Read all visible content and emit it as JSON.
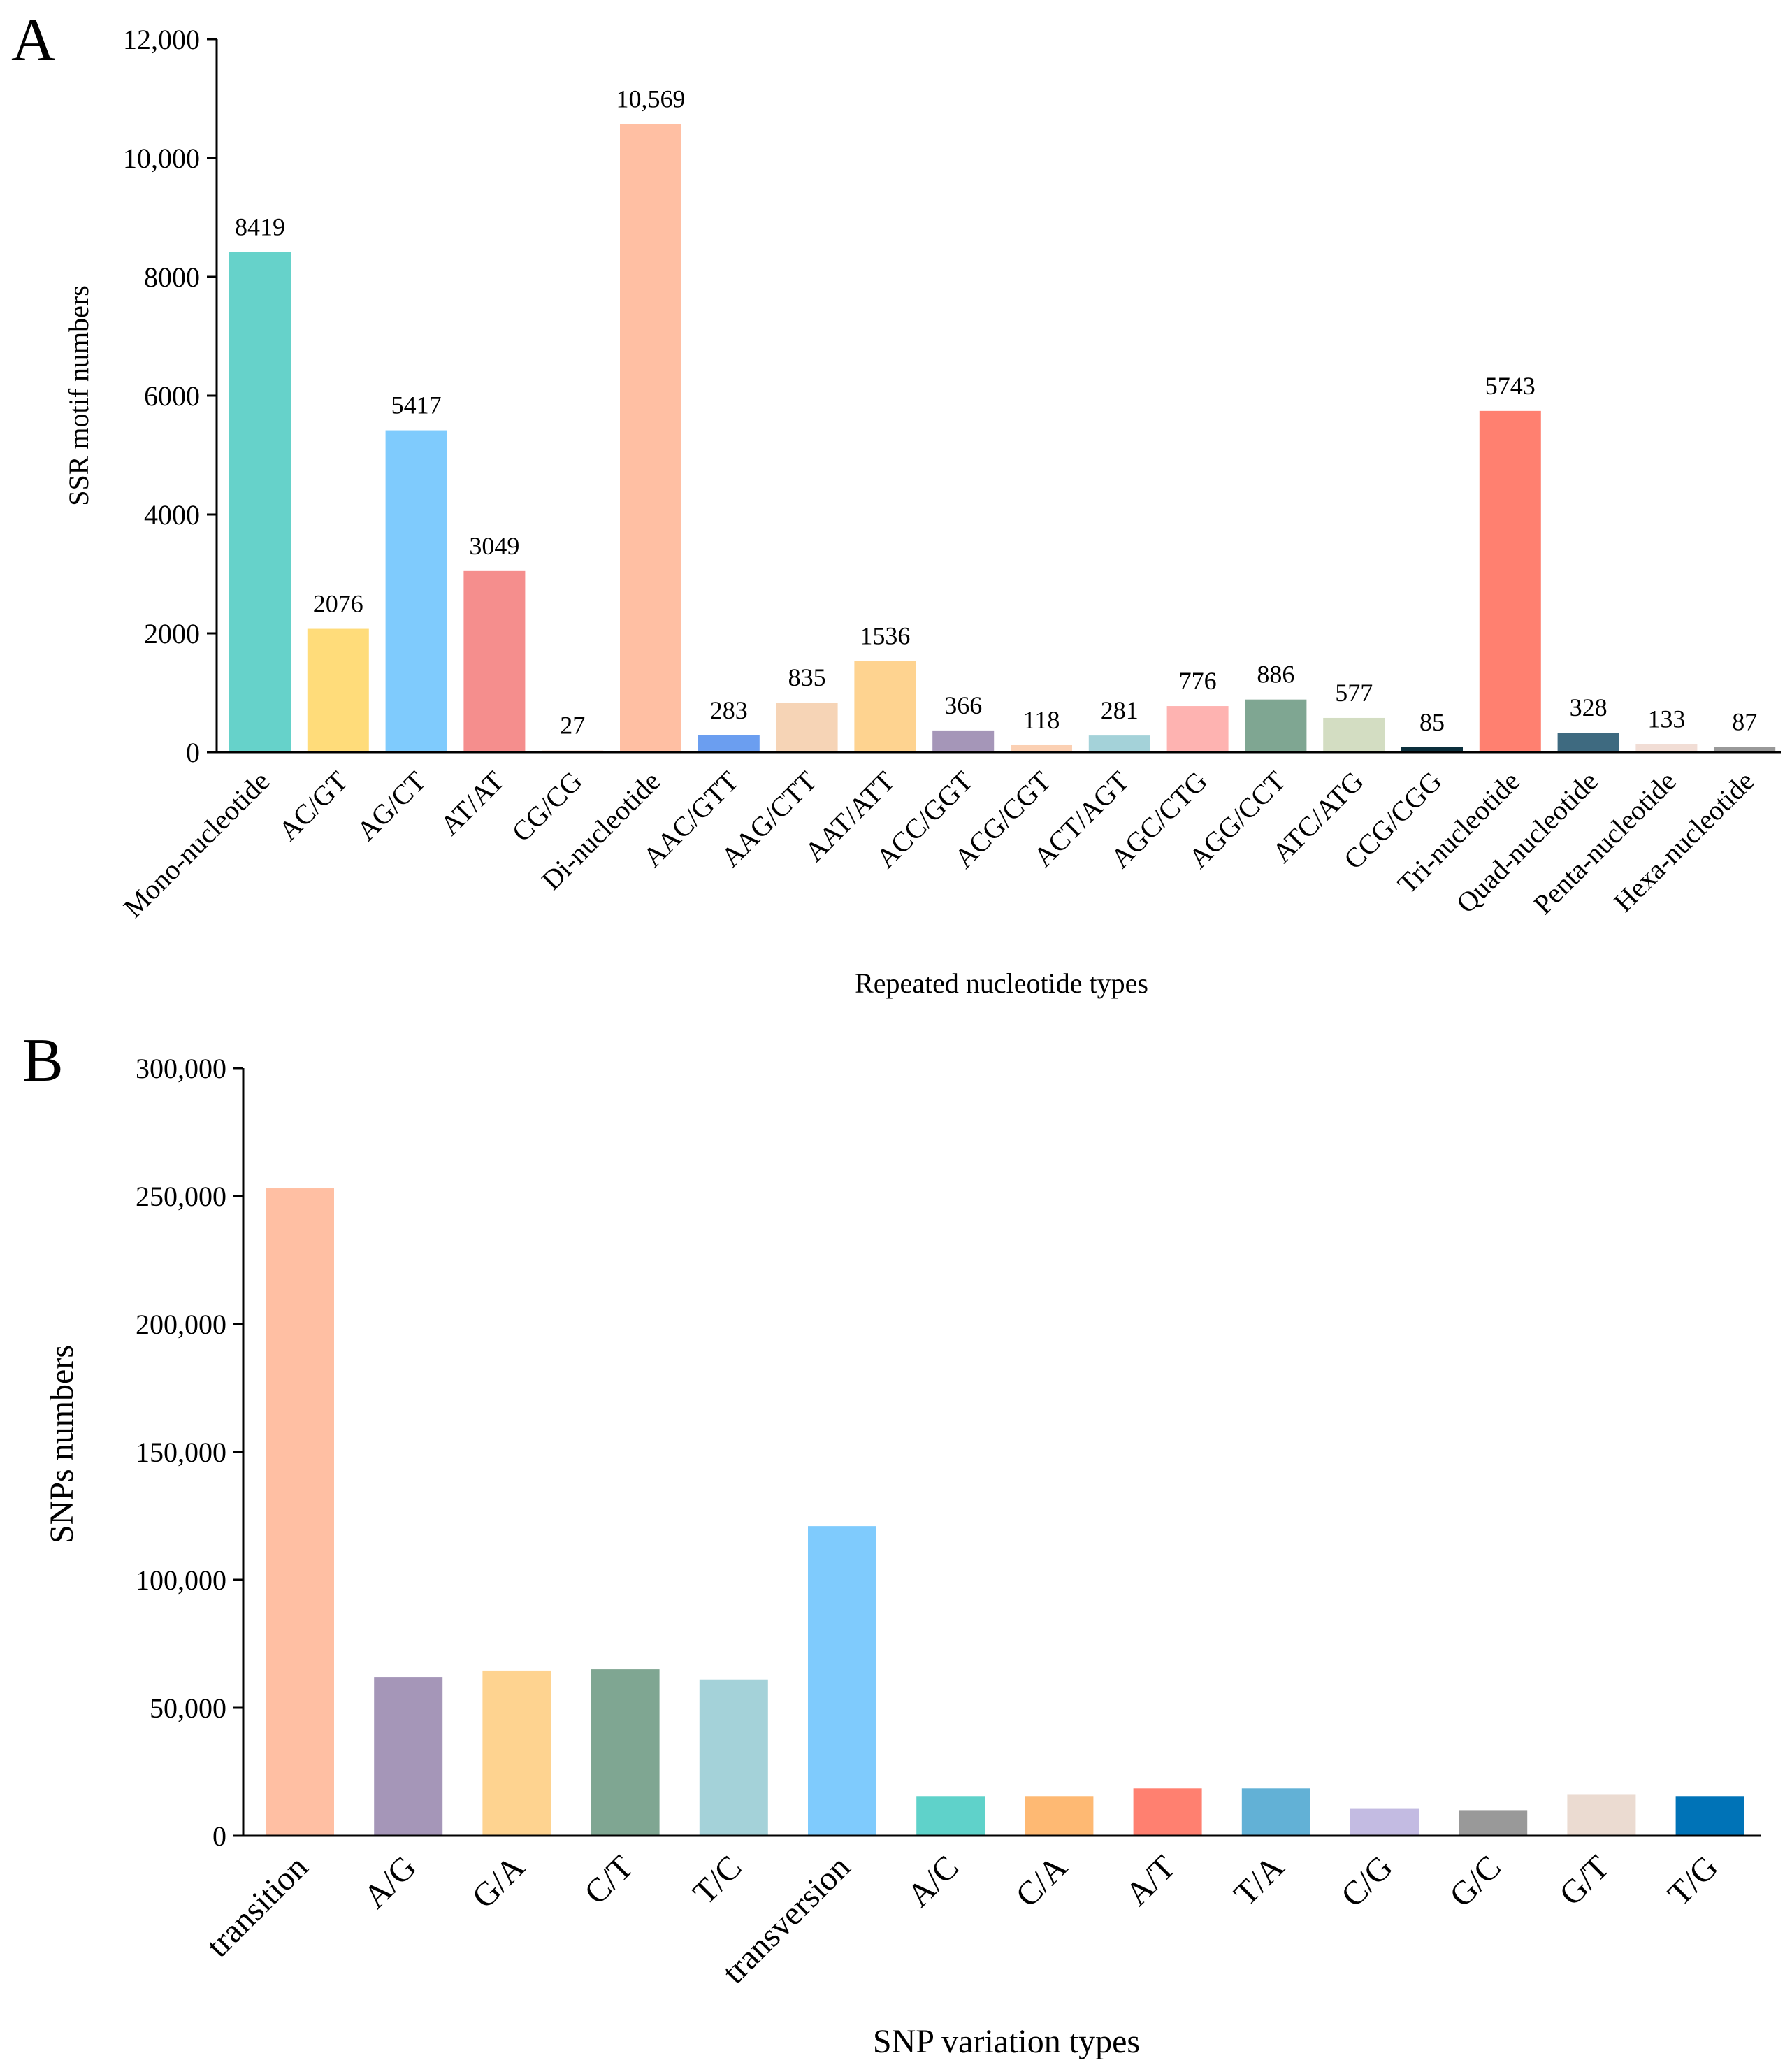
{
  "chart_data": [
    {
      "type": "bar",
      "panel_label": "A",
      "title": "",
      "xlabel": "Repeated nucleotide types",
      "ylabel": "SSR motif numbers",
      "ylim": [
        0,
        12000
      ],
      "yticks": [
        0,
        2000,
        4000,
        6000,
        8000,
        10000,
        12000
      ],
      "ytick_labels": [
        "0",
        "2000",
        "4000",
        "6000",
        "8000",
        "10,000",
        "12,000"
      ],
      "grid": false,
      "categories": [
        "Mono-nucleotide",
        "AC/GT",
        "AG/CT",
        "AT/AT",
        "CG/CG",
        "Di-nucleotide",
        "AAC/GTT",
        "AAG/CTT",
        "AAT/ATT",
        "ACC/GGT",
        "ACG/CGT",
        "ACT/AGT",
        "AGC/CTG",
        "AGG/CCT",
        "ATC/ATG",
        "CCG/CGG",
        "Tri-nucleotide",
        "Quad-nucleotide",
        "Penta-nucleotide",
        "Hexa-nucleotide"
      ],
      "values": [
        8419,
        2076,
        5417,
        3049,
        27,
        10569,
        283,
        835,
        1536,
        366,
        118,
        281,
        776,
        886,
        577,
        85,
        5743,
        328,
        133,
        87
      ],
      "value_labels": [
        "8419",
        "2076",
        "5417",
        "3049",
        "27",
        "10,569",
        "283",
        "835",
        "1536",
        "366",
        "118",
        "281",
        "776",
        "886",
        "577",
        "85",
        "5743",
        "328",
        "133",
        "87"
      ],
      "colors": [
        "#66d2ca",
        "#ffdc7a",
        "#7fcbfd",
        "#f58e8d",
        "#f7c0a8",
        "#ffbfa3",
        "#6b9ef0",
        "#f6d4b6",
        "#fed390",
        "#a596b8",
        "#fbd0b3",
        "#a4d2d9",
        "#feb3b1",
        "#7fa692",
        "#d3ddc2",
        "#0b2f3c",
        "#ff8070",
        "#3e6a80",
        "#f1ddd5",
        "#999999"
      ]
    },
    {
      "type": "bar",
      "panel_label": "B",
      "title": "",
      "xlabel": "SNP variation types",
      "ylabel": "SNPs numbers",
      "ylim": [
        0,
        300000
      ],
      "yticks": [
        0,
        50000,
        100000,
        150000,
        200000,
        250000,
        300000
      ],
      "ytick_labels": [
        "0",
        "50,000",
        "100,000",
        "150,000",
        "200,000",
        "250,000",
        "300,000"
      ],
      "grid": false,
      "categories": [
        "transition",
        "A/G",
        "G/A",
        "C/T",
        "T/C",
        "transversion",
        "A/C",
        "C/A",
        "A/T",
        "T/A",
        "C/G",
        "G/C",
        "G/T",
        "T/G"
      ],
      "values": [
        253000,
        62000,
        64500,
        65000,
        61000,
        121000,
        15500,
        15500,
        18500,
        18500,
        10500,
        10000,
        16000,
        15500
      ],
      "colors": [
        "#ffbfa3",
        "#a596b8",
        "#fed390",
        "#7fa692",
        "#a4d2d9",
        "#7fcbfd",
        "#5fd2ca",
        "#feb973",
        "#ff8070",
        "#62b1d6",
        "#c3bbe2",
        "#999999",
        "#ebdbd1",
        "#0073b7"
      ]
    }
  ]
}
